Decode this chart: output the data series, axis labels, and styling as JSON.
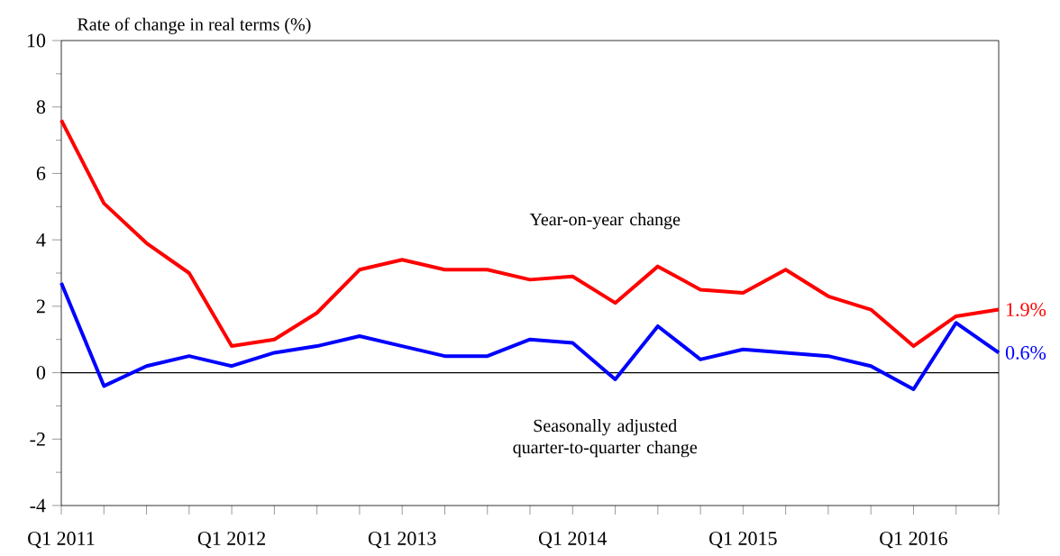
{
  "chart_data": {
    "type": "line",
    "ylabel": "Rate of change in real terms (%)",
    "categories": [
      "Q1 2011",
      null,
      null,
      null,
      "Q1 2012",
      null,
      null,
      null,
      "Q1 2013",
      null,
      null,
      null,
      "Q1 2014",
      null,
      null,
      null,
      "Q1 2015",
      null,
      null,
      null,
      "Q1 2016",
      null,
      null
    ],
    "series": [
      {
        "color": "#ff0000",
        "values": [
          7.6,
          5.1,
          3.9,
          3.0,
          0.8,
          1.0,
          1.8,
          3.1,
          3.4,
          3.1,
          3.1,
          2.8,
          2.9,
          2.1,
          3.2,
          2.5,
          2.4,
          3.1,
          2.3,
          1.9,
          0.8,
          1.7,
          1.9
        ],
        "value_labels": [
          null,
          null,
          null,
          null,
          null,
          null,
          null,
          null,
          null,
          null,
          null,
          null,
          null,
          null,
          null,
          null,
          null,
          null,
          null,
          null,
          null,
          null,
          "1.9%"
        ]
      },
      {
        "color": "#0000ff",
        "values": [
          2.7,
          -0.4,
          0.2,
          0.5,
          0.2,
          0.6,
          0.8,
          1.1,
          0.8,
          0.5,
          0.5,
          1.0,
          0.9,
          -0.2,
          1.4,
          0.4,
          0.7,
          0.6,
          0.5,
          0.2,
          -0.5,
          1.5,
          0.6
        ],
        "value_labels": [
          null,
          null,
          null,
          null,
          null,
          null,
          null,
          null,
          null,
          null,
          null,
          null,
          null,
          null,
          null,
          null,
          null,
          null,
          null,
          null,
          null,
          null,
          "0.6%"
        ]
      }
    ],
    "ylim": [
      -4,
      10
    ],
    "yticks": [
      -4,
      -2,
      0,
      2,
      4,
      6,
      8,
      10
    ],
    "ref_lines": [
      {
        "axis": "y",
        "value": 0,
        "color": "#000000"
      }
    ],
    "annotations": [
      "Year-on-year change",
      "Seasonally adjusted quarter-to-quarter change"
    ],
    "grid": false,
    "marker": "none",
    "line_style": "solid"
  }
}
